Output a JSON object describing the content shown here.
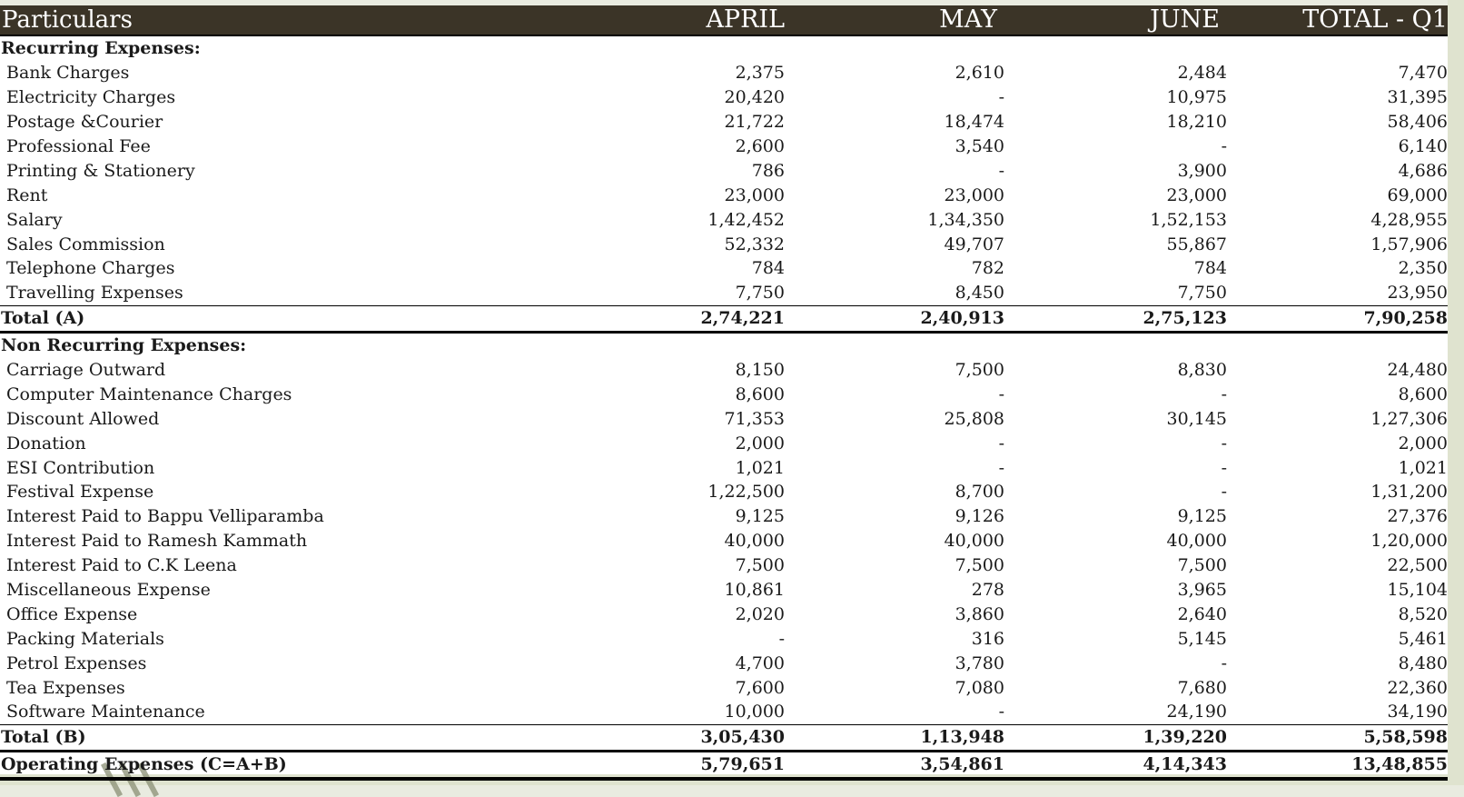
{
  "header": {
    "particulars": "Particulars",
    "april": "APRIL",
    "may": "MAY",
    "june": "JUNE",
    "total": "TOTAL - Q1"
  },
  "recurring": {
    "title": "Recurring Expenses:",
    "rows": [
      {
        "label": "Bank Charges",
        "april": "2,375",
        "may": "2,610",
        "june": "2,484",
        "total": "7,470"
      },
      {
        "label": "Electricity Charges",
        "april": "20,420",
        "may": "-",
        "june": "10,975",
        "total": "31,395"
      },
      {
        "label": "Postage &Courier",
        "april": "21,722",
        "may": "18,474",
        "june": "18,210",
        "total": "58,406"
      },
      {
        "label": "Professional Fee",
        "april": "2,600",
        "may": "3,540",
        "june": "-",
        "total": "6,140"
      },
      {
        "label": "Printing & Stationery",
        "april": "786",
        "may": "-",
        "june": "3,900",
        "total": "4,686"
      },
      {
        "label": "Rent",
        "april": "23,000",
        "may": "23,000",
        "june": "23,000",
        "total": "69,000"
      },
      {
        "label": "Salary",
        "april": "1,42,452",
        "may": "1,34,350",
        "june": "1,52,153",
        "total": "4,28,955"
      },
      {
        "label": "Sales Commission",
        "april": "52,332",
        "may": "49,707",
        "june": "55,867",
        "total": "1,57,906"
      },
      {
        "label": "Telephone Charges",
        "april": "784",
        "may": "782",
        "june": "784",
        "total": "2,350"
      },
      {
        "label": "Travelling Expenses",
        "april": "7,750",
        "may": "8,450",
        "june": "7,750",
        "total": "23,950"
      }
    ],
    "total": {
      "label": "Total (A)",
      "april": "2,74,221",
      "may": "2,40,913",
      "june": "2,75,123",
      "total": "7,90,258"
    }
  },
  "nonrecurring": {
    "title": "Non Recurring Expenses:",
    "rows": [
      {
        "label": "Carriage Outward",
        "april": "8,150",
        "may": "7,500",
        "june": "8,830",
        "total": "24,480"
      },
      {
        "label": "Computer Maintenance Charges",
        "april": "8,600",
        "may": "-",
        "june": "-",
        "total": "8,600"
      },
      {
        "label": "Discount Allowed",
        "april": "71,353",
        "may": "25,808",
        "june": "30,145",
        "total": "1,27,306"
      },
      {
        "label": "Donation",
        "april": "2,000",
        "may": "-",
        "june": "-",
        "total": "2,000"
      },
      {
        "label": "ESI Contribution",
        "april": "1,021",
        "may": "-",
        "june": "-",
        "total": "1,021"
      },
      {
        "label": "Festival Expense",
        "april": "1,22,500",
        "may": "8,700",
        "june": "-",
        "total": "1,31,200"
      },
      {
        "label": "Interest Paid to Bappu Velliparamba",
        "april": "9,125",
        "may": "9,126",
        "june": "9,125",
        "total": "27,376"
      },
      {
        "label": "Interest Paid to Ramesh Kammath",
        "april": "40,000",
        "may": "40,000",
        "june": "40,000",
        "total": "1,20,000"
      },
      {
        "label": "Interest Paid to C.K Leena",
        "april": "7,500",
        "may": "7,500",
        "june": "7,500",
        "total": "22,500"
      },
      {
        "label": "Miscellaneous Expense",
        "april": "10,861",
        "may": "278",
        "june": "3,965",
        "total": "15,104"
      },
      {
        "label": "Office Expense",
        "april": "2,020",
        "may": "3,860",
        "june": "2,640",
        "total": "8,520"
      },
      {
        "label": "Packing Materials",
        "april": "-",
        "may": "316",
        "june": "5,145",
        "total": "5,461"
      },
      {
        "label": "Petrol Expenses",
        "april": "4,700",
        "may": "3,780",
        "june": "-",
        "total": "8,480"
      },
      {
        "label": "Tea Expenses",
        "april": "7,600",
        "may": "7,080",
        "june": "7,680",
        "total": "22,360"
      },
      {
        "label": "Software Maintenance",
        "april": "10,000",
        "may": "-",
        "june": "24,190",
        "total": "34,190"
      }
    ],
    "total": {
      "label": "Total (B)",
      "april": "3,05,430",
      "may": "1,13,948",
      "june": "1,39,220",
      "total": "5,58,598"
    }
  },
  "operating": {
    "label": "Operating Expenses (C=A+B)",
    "april": "5,79,651",
    "may": "3,54,861",
    "june": "4,14,343",
    "total": "13,48,855"
  }
}
